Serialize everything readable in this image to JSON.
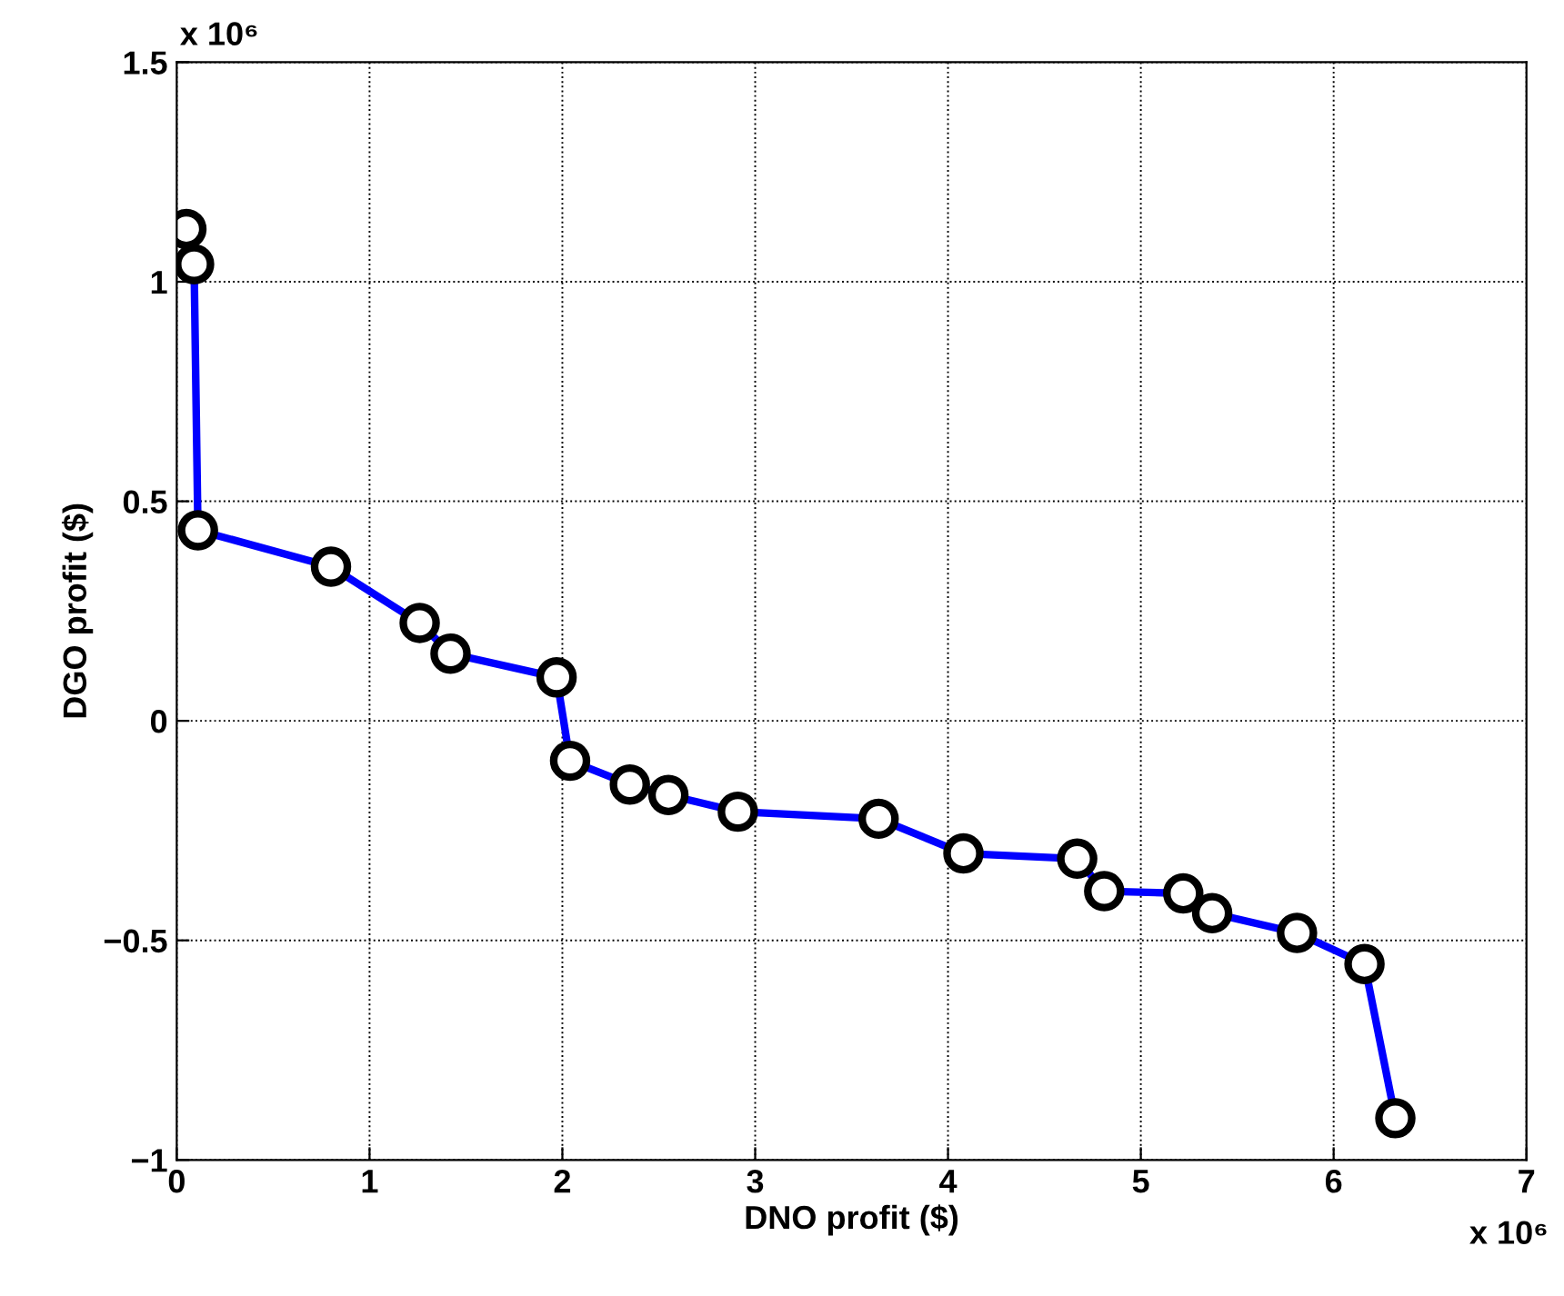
{
  "chart_data": {
    "type": "line",
    "xlabel": "DNO profit ($)",
    "ylabel": "DGO profit ($)",
    "annotations": [
      "x 10⁶",
      "x 10⁶"
    ],
    "series": [
      {
        "color": "#0000ff",
        "x": [
          0.05,
          0.09,
          0.11,
          0.8,
          1.26,
          1.42,
          1.97,
          2.04,
          2.35,
          2.55,
          2.91,
          3.64,
          4.08,
          4.67,
          4.81,
          5.22,
          5.37,
          5.81,
          6.16,
          6.32
        ],
        "values": [
          1.12,
          1.04,
          0.434,
          0.351,
          0.223,
          0.153,
          0.099,
          -0.091,
          -0.145,
          -0.169,
          -0.207,
          -0.223,
          -0.302,
          -0.314,
          -0.388,
          -0.393,
          -0.438,
          -0.483,
          -0.554,
          -0.905
        ]
      }
    ],
    "xlim": [
      0,
      7
    ],
    "xticks": [
      0,
      1,
      2,
      3,
      4,
      5,
      6,
      7
    ],
    "ylim": [
      -1,
      1.5
    ],
    "yticks": [
      {
        "value": -1,
        "label": "−1"
      },
      {
        "value": -0.5,
        "label": "−0.5"
      },
      0,
      0.5,
      1,
      1.5
    ],
    "grid": true,
    "marker": "circle",
    "line_style": "solid"
  }
}
